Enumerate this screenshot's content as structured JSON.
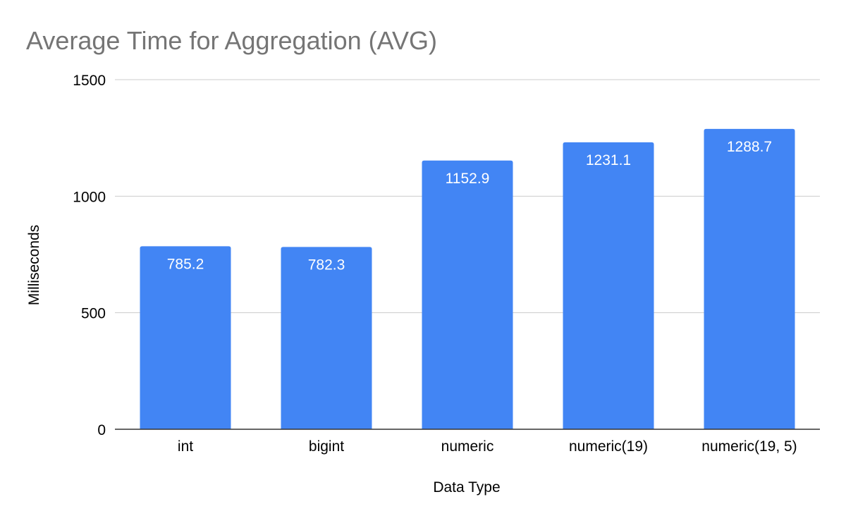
{
  "chart_data": {
    "type": "bar",
    "title": "Average Time for Aggregation (AVG)",
    "xlabel": "Data Type",
    "ylabel": "Milliseconds",
    "categories": [
      "int",
      "bigint",
      "numeric",
      "numeric(19)",
      "numeric(19, 5)"
    ],
    "values": [
      785.2,
      782.3,
      1152.9,
      1231.1,
      1288.7
    ],
    "data_labels": [
      "785.2",
      "782.3",
      "1152.9",
      "1231.1",
      "1288.7"
    ],
    "yticks": [
      "0",
      "500",
      "1000",
      "1500"
    ],
    "ylim": [
      0,
      1500
    ],
    "grid": true,
    "legend": "none",
    "bar_color": "#4285f4",
    "gridline_color": "#cccccc",
    "title_color": "#757575"
  }
}
